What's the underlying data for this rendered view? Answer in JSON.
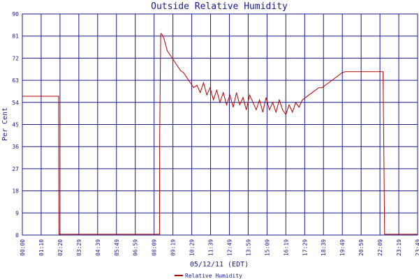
{
  "chart_data": {
    "type": "line",
    "title": "Outside Relative Humidity",
    "xlabel": "05/12/11 (EDT)",
    "ylabel": "Per Cent",
    "ylim": [
      0,
      90
    ],
    "y_ticks": [
      "0",
      "9",
      "18",
      "27",
      "36",
      "45",
      "54",
      "63",
      "72",
      "81",
      "90"
    ],
    "x_ticks": [
      "00:00",
      "01:10",
      "02:20",
      "03:29",
      "04:39",
      "05:49",
      "06:59",
      "08:09",
      "09:19",
      "10:29",
      "11:39",
      "12:49",
      "13:59",
      "15:09",
      "16:19",
      "17:29",
      "18:39",
      "19:49",
      "20:59",
      "22:09",
      "23:19",
      "23:49"
    ],
    "x_range_hours": [
      0,
      24
    ],
    "grid": true,
    "legend_position": "bottom-center",
    "colors": {
      "series": "#b00000",
      "grid": "#1a1a8c",
      "text": "#1a1a8c"
    },
    "series": [
      {
        "name": "Relative Humidity",
        "x_hours": [
          0,
          2.2,
          2.21,
          2.22,
          2.23,
          8.33,
          8.34,
          8.4,
          8.45,
          8.6,
          8.8,
          9.0,
          9.2,
          9.4,
          9.6,
          9.8,
          10.0,
          10.2,
          10.4,
          10.6,
          10.8,
          11.0,
          11.2,
          11.4,
          11.6,
          11.8,
          12.0,
          12.2,
          12.4,
          12.6,
          12.8,
          13.0,
          13.2,
          13.4,
          13.6,
          13.8,
          14.0,
          14.2,
          14.4,
          14.6,
          14.8,
          15.0,
          15.2,
          15.4,
          15.6,
          15.8,
          16.0,
          16.2,
          16.4,
          16.6,
          16.8,
          17.0,
          17.2,
          17.4,
          17.6,
          17.8,
          18.0,
          18.2,
          18.4,
          18.6,
          18.8,
          19.0,
          19.2,
          19.4,
          19.6,
          19.8,
          20.0,
          20.5,
          21.0,
          21.5,
          21.9,
          21.95,
          22.0,
          23.0,
          23.99
        ],
        "values": [
          56.5,
          56.5,
          28,
          0.5,
          0.3,
          0.3,
          41,
          82,
          82,
          80,
          75,
          73,
          71,
          69,
          67,
          66,
          64,
          62,
          60,
          61,
          58,
          62,
          57,
          60,
          55,
          59,
          54,
          58,
          53,
          57,
          52,
          58,
          53,
          56,
          51,
          57,
          54,
          51,
          55,
          50,
          56,
          51,
          54,
          50,
          55,
          51,
          49,
          53,
          50,
          54,
          52,
          55,
          56,
          57,
          58,
          59,
          60,
          60,
          61,
          62,
          63,
          64,
          65,
          66,
          66.5,
          66.5,
          66.5,
          66.5,
          66.5,
          66.5,
          66.5,
          33,
          0.3,
          0.3,
          0.3
        ]
      }
    ]
  }
}
